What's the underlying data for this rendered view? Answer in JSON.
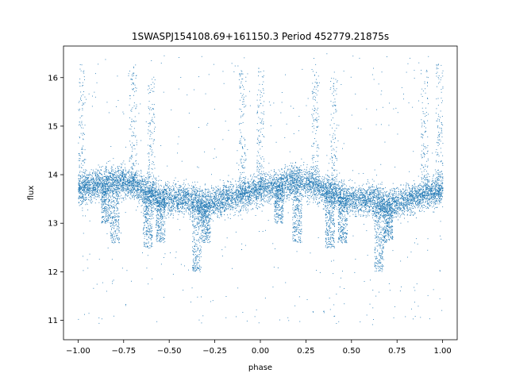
{
  "chart_data": {
    "type": "scatter",
    "title": "1SWASPJ154108.69+161150.3 Period 452779.21875s",
    "xlabel": "phase",
    "ylabel": "flux",
    "xlim": [
      -1.08,
      1.08
    ],
    "ylim": [
      10.6,
      16.65
    ],
    "x_ticks": [
      -1.0,
      -0.75,
      -0.5,
      -0.25,
      0.0,
      0.25,
      0.5,
      0.75,
      1.0
    ],
    "x_tick_labels": [
      "−1.00",
      "−0.75",
      "−0.50",
      "−0.25",
      "0.00",
      "0.25",
      "0.50",
      "0.75",
      "1.00"
    ],
    "y_ticks": [
      11,
      12,
      13,
      14,
      15,
      16
    ],
    "y_tick_labels": [
      "11",
      "12",
      "13",
      "14",
      "15",
      "16"
    ],
    "grid": false,
    "marker_color": "#1f77b4",
    "baseline_profile": {
      "x": [
        -1.0,
        -0.9,
        -0.8,
        -0.7,
        -0.6,
        -0.5,
        -0.4,
        -0.3,
        -0.2,
        -0.1,
        0.0,
        0.1,
        0.2,
        0.3,
        0.4,
        0.5,
        0.6,
        0.7,
        0.8,
        0.9,
        1.0
      ],
      "y": [
        13.7,
        13.8,
        13.9,
        13.8,
        13.6,
        13.5,
        13.5,
        13.4,
        13.5,
        13.6,
        13.7,
        13.8,
        13.9,
        13.8,
        13.6,
        13.5,
        13.5,
        13.4,
        13.5,
        13.6,
        13.7
      ]
    },
    "dips": [
      {
        "x": -0.85,
        "min_flux": 13.0
      },
      {
        "x": -0.8,
        "min_flux": 12.6
      },
      {
        "x": -0.62,
        "min_flux": 12.5
      },
      {
        "x": -0.55,
        "min_flux": 12.6
      },
      {
        "x": -0.35,
        "min_flux": 12.0
      },
      {
        "x": -0.3,
        "min_flux": 12.6
      },
      {
        "x": 0.1,
        "min_flux": 13.0
      },
      {
        "x": 0.2,
        "min_flux": 12.6
      },
      {
        "x": 0.38,
        "min_flux": 12.5
      },
      {
        "x": 0.45,
        "min_flux": 12.6
      },
      {
        "x": 0.65,
        "min_flux": 12.0
      },
      {
        "x": 0.7,
        "min_flux": 12.6
      }
    ],
    "spikes": [
      {
        "x": -0.98,
        "max_flux": 16.3
      },
      {
        "x": -0.7,
        "max_flux": 16.3
      },
      {
        "x": -0.6,
        "max_flux": 16.0
      },
      {
        "x": -0.1,
        "max_flux": 16.2
      },
      {
        "x": 0.0,
        "max_flux": 16.3
      },
      {
        "x": 0.3,
        "max_flux": 16.3
      },
      {
        "x": 0.4,
        "max_flux": 16.0
      },
      {
        "x": 0.9,
        "max_flux": 16.2
      },
      {
        "x": 0.98,
        "max_flux": 16.3
      }
    ]
  }
}
